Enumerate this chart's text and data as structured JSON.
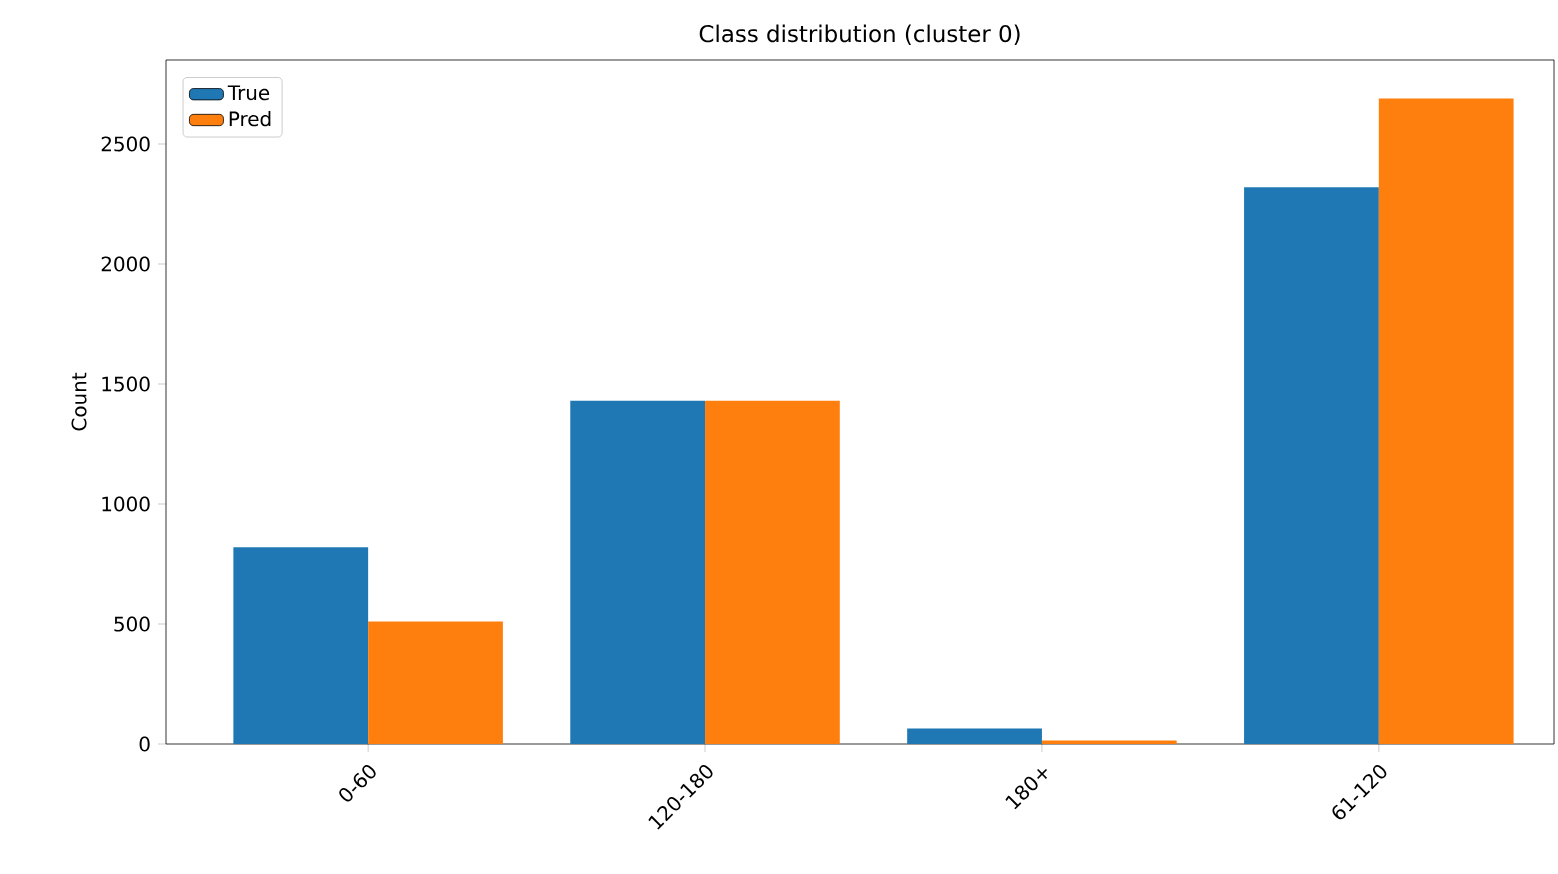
{
  "chart_data": {
    "type": "bar",
    "title": "Class distribution (cluster 0)",
    "ylabel": "Count",
    "categories": [
      "0-60",
      "120-180",
      "180+",
      "61-120"
    ],
    "series": [
      {
        "name": "True",
        "color": "#1f77b4",
        "values": [
          820,
          1430,
          65,
          2320
        ]
      },
      {
        "name": "Pred",
        "color": "#ff7f0e",
        "values": [
          510,
          1430,
          15,
          2690
        ]
      }
    ],
    "ylim": [
      0,
      2850
    ],
    "yticks": [
      0,
      500,
      1000,
      1500,
      2000,
      2500
    ],
    "grid": false,
    "legend": "top left"
  }
}
